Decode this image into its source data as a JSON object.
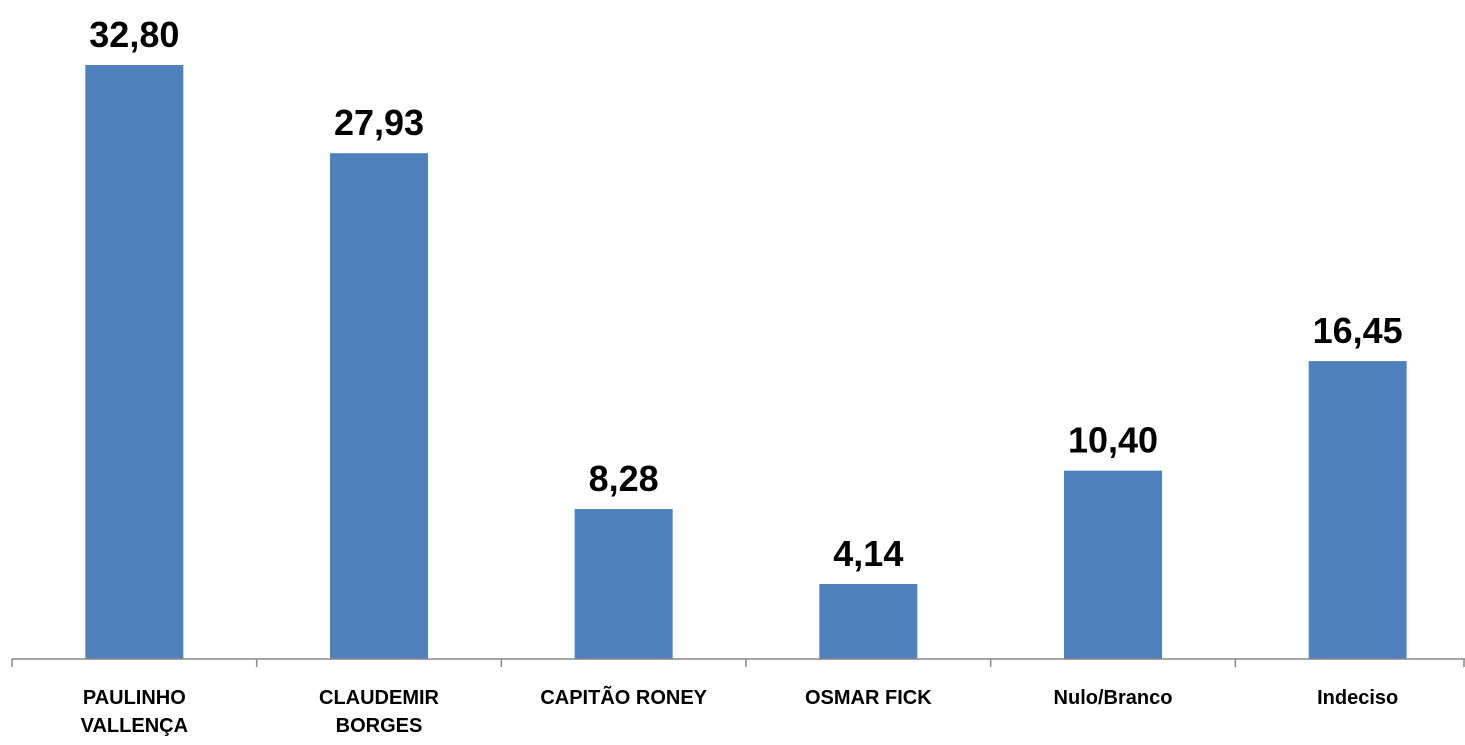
{
  "chart_data": {
    "type": "bar",
    "categories": [
      "PAULINHO\nVALLENÇA",
      "CLAUDEMIR\nBORGES",
      "CAPITÃO RONEY",
      "OSMAR FICK",
      "Nulo/Branco",
      "Indeciso"
    ],
    "values": [
      32.8,
      27.93,
      8.28,
      4.14,
      10.4,
      16.45
    ],
    "value_labels": [
      "32,80",
      "27,93",
      "8,28",
      "4,14",
      "10,40",
      "16,45"
    ],
    "color": "#4f81bd"
  }
}
